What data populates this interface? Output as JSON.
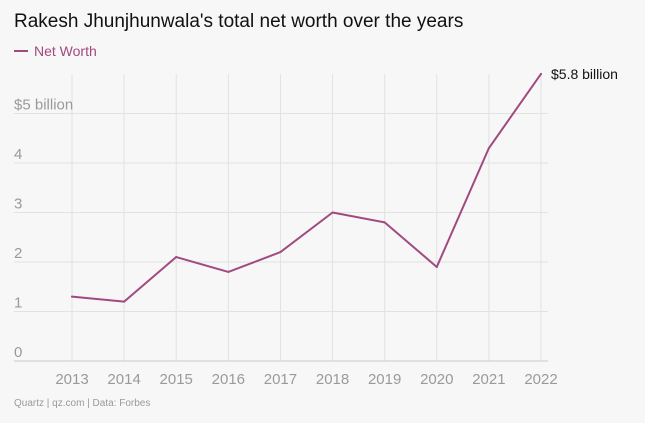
{
  "title": "Rakesh Jhunjhunwala's total net worth over the years",
  "legend": {
    "label": "Net Worth"
  },
  "footer": "Quartz | qz.com | Data: Forbes",
  "colors": {
    "line": "#a04a80",
    "grid": "#e2e2e2",
    "tick": "#9a9a9a",
    "axis": "#c8c8c8"
  },
  "chart_data": {
    "type": "line",
    "title": "Rakesh Jhunjhunwala's total net worth over the years",
    "xlabel": "",
    "ylabel": "",
    "x": [
      "2013",
      "2014",
      "2015",
      "2016",
      "2017",
      "2018",
      "2019",
      "2020",
      "2021",
      "2022"
    ],
    "series": [
      {
        "name": "Net Worth",
        "values": [
          1.3,
          1.2,
          2.1,
          1.8,
          2.2,
          3.0,
          2.8,
          1.9,
          4.3,
          5.8
        ]
      }
    ],
    "ylim": [
      0,
      6
    ],
    "yticks": [
      0,
      1,
      2,
      3,
      4,
      5
    ],
    "ytick_labels": [
      "0",
      "1",
      "2",
      "3",
      "4",
      "$5 billion"
    ],
    "end_label": "$5.8 billion",
    "grid": true,
    "legend_position": "top-left"
  }
}
